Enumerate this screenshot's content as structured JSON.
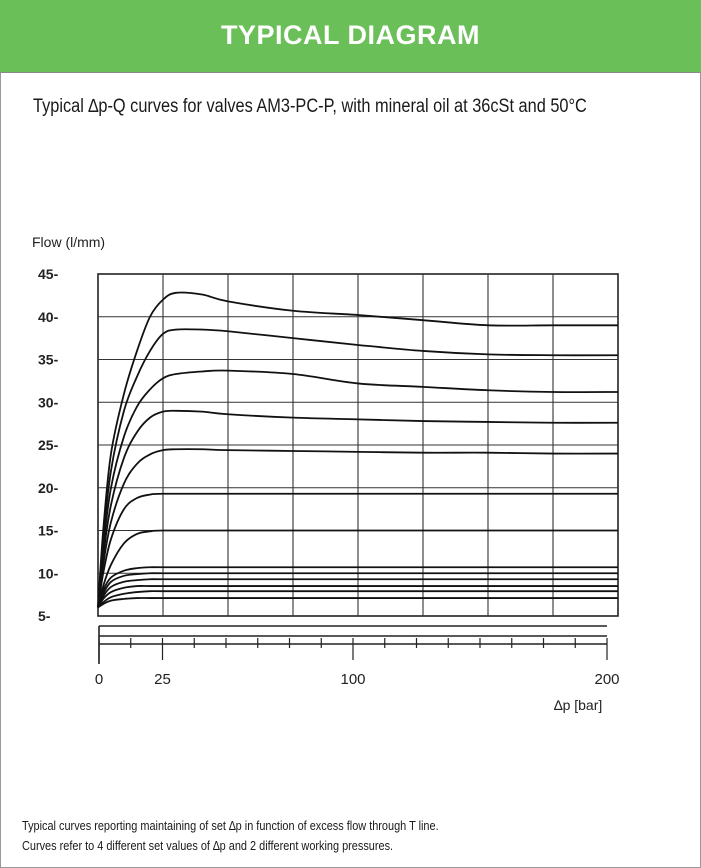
{
  "header": {
    "title": "TYPICAL DIAGRAM",
    "bg_color": "#6abf59"
  },
  "subtitle": "Typical ∆p-Q curves for valves AM3-PC-P, with mineral oil at 36cSt and 50°C",
  "notes": [
    "Typical curves  reporting maintaining of set  ∆p  in function of excess flow through T line.",
    "Curves refer to 4 different set values of  ∆p  and 2 different working pressures."
  ],
  "chart_data": {
    "type": "line",
    "ylabel": "Flow (l/mm)",
    "xlabel": "∆p  [bar]",
    "ylim": [
      5,
      45
    ],
    "xlim": [
      0,
      200
    ],
    "y_ticks": [
      "5-",
      "10-",
      "15-",
      "20-",
      "25-",
      "30-",
      "35-",
      "40-",
      "45-"
    ],
    "x_ticks": [
      "0",
      "25",
      "100",
      "200"
    ],
    "grid": true,
    "series": [
      {
        "x": [
          0,
          2,
          5,
          10,
          15,
          20,
          25,
          30,
          40,
          50,
          75,
          100,
          125,
          150,
          175,
          200
        ],
        "values": [
          6,
          15,
          24,
          31,
          36,
          40,
          42,
          42.8,
          42.6,
          41.8,
          40.7,
          40.2,
          39.6,
          39,
          39,
          39
        ]
      },
      {
        "x": [
          0,
          2,
          5,
          10,
          15,
          20,
          25,
          30,
          40,
          50,
          75,
          100,
          125,
          150,
          175,
          200
        ],
        "values": [
          6,
          14,
          22,
          29,
          33,
          36,
          38,
          38.5,
          38.5,
          38.3,
          37.5,
          36.7,
          36,
          35.6,
          35.5,
          35.5
        ]
      },
      {
        "x": [
          0,
          2,
          5,
          10,
          15,
          20,
          25,
          30,
          40,
          50,
          75,
          100,
          125,
          150,
          175,
          200
        ],
        "values": [
          6,
          13,
          20,
          26,
          29.5,
          31.5,
          32.8,
          33.3,
          33.6,
          33.7,
          33.3,
          32.2,
          31.8,
          31.4,
          31.2,
          31.2
        ]
      },
      {
        "x": [
          0,
          2,
          5,
          10,
          15,
          20,
          25,
          30,
          40,
          50,
          75,
          100,
          125,
          150,
          175,
          200
        ],
        "values": [
          6,
          12,
          18,
          23.5,
          26.5,
          28.2,
          28.9,
          29,
          28.9,
          28.6,
          28.2,
          28,
          27.8,
          27.7,
          27.6,
          27.6
        ]
      },
      {
        "x": [
          0,
          2,
          5,
          10,
          15,
          20,
          25,
          30,
          40,
          50,
          75,
          100,
          125,
          150,
          175,
          200
        ],
        "values": [
          6,
          11,
          16,
          20.5,
          22.8,
          23.9,
          24.4,
          24.5,
          24.5,
          24.4,
          24.3,
          24.2,
          24.1,
          24.1,
          24,
          24
        ]
      },
      {
        "x": [
          0,
          2,
          5,
          10,
          15,
          20,
          25,
          50,
          100,
          150,
          200
        ],
        "values": [
          6,
          10,
          14,
          17.5,
          18.8,
          19.2,
          19.3,
          19.3,
          19.3,
          19.3,
          19.3
        ]
      },
      {
        "x": [
          0,
          2,
          5,
          10,
          15,
          20,
          25,
          50,
          100,
          150,
          200
        ],
        "values": [
          6,
          8.5,
          11,
          13.5,
          14.6,
          14.9,
          15,
          15,
          15,
          15,
          15
        ]
      },
      {
        "x": [
          0,
          2,
          5,
          10,
          15,
          20,
          25,
          50,
          100,
          150,
          200
        ],
        "values": [
          6,
          8,
          9.5,
          10.3,
          10.6,
          10.7,
          10.7,
          10.7,
          10.7,
          10.7,
          10.7
        ]
      },
      {
        "x": [
          0,
          2,
          5,
          10,
          15,
          20,
          25,
          50,
          100,
          150,
          200
        ],
        "values": [
          6,
          7.6,
          9,
          9.7,
          9.9,
          10,
          10,
          10,
          10,
          10,
          10
        ]
      },
      {
        "x": [
          0,
          2,
          5,
          10,
          15,
          20,
          25,
          50,
          100,
          150,
          200
        ],
        "values": [
          6,
          7.3,
          8.4,
          9,
          9.2,
          9.3,
          9.3,
          9.3,
          9.3,
          9.3,
          9.3
        ]
      },
      {
        "x": [
          0,
          2,
          5,
          10,
          15,
          20,
          25,
          50,
          100,
          150,
          200
        ],
        "values": [
          6,
          7,
          7.8,
          8.3,
          8.5,
          8.5,
          8.5,
          8.5,
          8.5,
          8.5,
          8.5
        ]
      },
      {
        "x": [
          0,
          2,
          5,
          10,
          15,
          20,
          25,
          50,
          100,
          150,
          200
        ],
        "values": [
          6,
          6.6,
          7.2,
          7.6,
          7.8,
          7.9,
          7.9,
          7.9,
          7.9,
          7.9,
          7.9
        ]
      },
      {
        "x": [
          0,
          2,
          5,
          10,
          15,
          20,
          25,
          50,
          100,
          150,
          200
        ],
        "values": [
          6,
          6.4,
          6.8,
          7,
          7.1,
          7.1,
          7.1,
          7.1,
          7.1,
          7.1,
          7.1
        ]
      }
    ]
  }
}
